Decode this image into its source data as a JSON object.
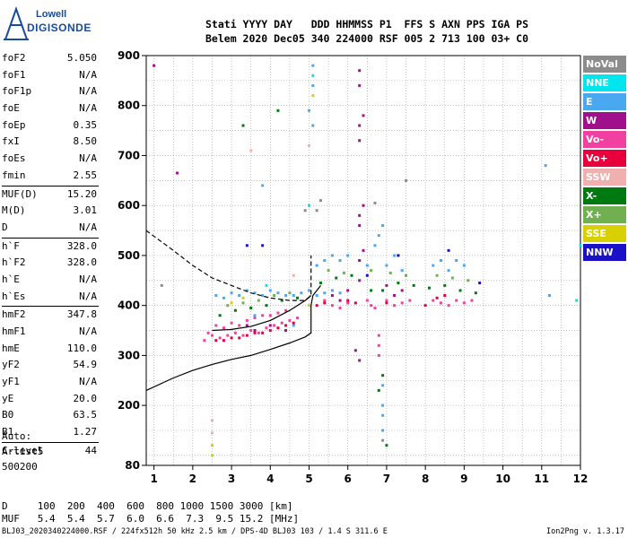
{
  "logo": {
    "line1": "Lowell",
    "line2": "DIGISONDE",
    "icon": "digisonde-logo-icon"
  },
  "header": {
    "line1": "Stati YYYY DAY   DDD HHMMSS P1  FFS S AXN PPS IGA PS",
    "line2": "Belem 2020 Dec05 340 224000 RSF 005 2 713 100 03+ C0"
  },
  "params": [
    [
      {
        "k": "foF2",
        "v": "5.050"
      },
      {
        "k": "foF1",
        "v": "N/A"
      },
      {
        "k": "foF1p",
        "v": "N/A"
      },
      {
        "k": "foE",
        "v": "N/A"
      },
      {
        "k": "foEp",
        "v": "0.35"
      },
      {
        "k": "fxI",
        "v": "8.50"
      },
      {
        "k": "foEs",
        "v": "N/A"
      },
      {
        "k": "fmin",
        "v": "2.55"
      }
    ],
    [
      {
        "k": "MUF(D)",
        "v": "15.20"
      },
      {
        "k": "M(D)",
        "v": "3.01"
      },
      {
        "k": "D",
        "v": "N/A"
      }
    ],
    [
      {
        "k": "h`F",
        "v": "328.0"
      },
      {
        "k": "h`F2",
        "v": "328.0"
      },
      {
        "k": "h`E",
        "v": "N/A"
      },
      {
        "k": "h`Es",
        "v": "N/A"
      }
    ],
    [
      {
        "k": "hmF2",
        "v": "347.8"
      },
      {
        "k": "hmF1",
        "v": "N/A"
      },
      {
        "k": "hmE",
        "v": "110.0"
      },
      {
        "k": "yF2",
        "v": "54.9"
      },
      {
        "k": "yF1",
        "v": "N/A"
      },
      {
        "k": "yE",
        "v": "20.0"
      },
      {
        "k": "B0",
        "v": "63.5"
      },
      {
        "k": "B1",
        "v": "1.27"
      }
    ],
    [
      {
        "k": "C-level",
        "v": "44"
      }
    ]
  ],
  "auto": {
    "line1": "Auto:",
    "line2": "Artist5",
    "line3": "500200"
  },
  "legend": [
    {
      "label": "NoVal",
      "color": "#8c8c8c"
    },
    {
      "label": "NNE",
      "color": "#00e5ee"
    },
    {
      "label": "E",
      "color": "#4aa8f0"
    },
    {
      "label": "W",
      "color": "#a0108a"
    },
    {
      "label": "Vo-",
      "color": "#f040a0"
    },
    {
      "label": "Vo+",
      "color": "#e8003c"
    },
    {
      "label": "SSW",
      "color": "#f0b0b0"
    },
    {
      "label": "X-",
      "color": "#007a10"
    },
    {
      "label": "X+",
      "color": "#70b050"
    },
    {
      "label": "SSE",
      "color": "#d8d000"
    },
    {
      "label": "NNW",
      "color": "#1a10c8"
    }
  ],
  "dmuf": {
    "line1": "D     100  200  400  600  800 1000 1500 3000 [km]",
    "line2": "MUF   5.4  5.4  5.7  6.0  6.6  7.3  9.5 15.2 [MHz]"
  },
  "footer": {
    "left": "BLJ03_2020340224000.RSF / 224fx512h 50 kHz 2.5 km / DPS-4D BLJ03 103 / 1.4 S 311.6 E",
    "right": "Ion2Png v. 1.3.17"
  },
  "chart_data": {
    "type": "scatter",
    "title": "",
    "xlabel": "",
    "ylabel": "",
    "xlim": [
      0.8,
      12
    ],
    "ylim": [
      80,
      900
    ],
    "x_ticks": [
      1,
      2,
      3,
      4,
      5,
      6,
      7,
      8,
      9,
      10,
      11,
      12
    ],
    "y_ticks": [
      80,
      200,
      300,
      400,
      500,
      600,
      700,
      800,
      900
    ],
    "grid": true,
    "legend_placement": "right",
    "series": [
      {
        "name": "E",
        "color": "#4aa8f0",
        "points": [
          [
            2.6,
            420
          ],
          [
            2.8,
            415
          ],
          [
            3.0,
            425
          ],
          [
            3.2,
            420
          ],
          [
            3.4,
            430
          ],
          [
            3.6,
            425
          ],
          [
            3.8,
            420
          ],
          [
            4.0,
            430
          ],
          [
            4.2,
            425
          ],
          [
            4.4,
            420
          ],
          [
            4.6,
            420
          ],
          [
            4.8,
            425
          ],
          [
            5.0,
            430
          ],
          [
            5.2,
            420
          ],
          [
            5.4,
            425
          ],
          [
            5.6,
            430
          ],
          [
            5.8,
            425
          ],
          [
            5.2,
            480
          ],
          [
            5.4,
            490
          ],
          [
            5.6,
            500
          ],
          [
            5.8,
            490
          ],
          [
            6.0,
            500
          ],
          [
            6.5,
            480
          ],
          [
            6.7,
            520
          ],
          [
            6.8,
            540
          ],
          [
            6.9,
            560
          ],
          [
            7.0,
            480
          ],
          [
            7.2,
            500
          ],
          [
            7.4,
            470
          ],
          [
            8.2,
            480
          ],
          [
            8.4,
            490
          ],
          [
            8.6,
            470
          ],
          [
            8.8,
            490
          ],
          [
            9.0,
            480
          ],
          [
            6.9,
            200
          ],
          [
            6.9,
            180
          ],
          [
            6.9,
            240
          ],
          [
            6.9,
            150
          ],
          [
            5.1,
            880
          ],
          [
            5.1,
            840
          ],
          [
            5.0,
            790
          ],
          [
            5.1,
            760
          ],
          [
            3.8,
            640
          ],
          [
            4.4,
            350
          ],
          [
            4.6,
            360
          ],
          [
            3.6,
            380
          ],
          [
            11.1,
            680
          ],
          [
            11.2,
            420
          ]
        ]
      },
      {
        "name": "W",
        "color": "#a0108a",
        "points": [
          [
            6.3,
            870
          ],
          [
            6.3,
            840
          ],
          [
            6.4,
            780
          ],
          [
            6.3,
            760
          ],
          [
            6.3,
            730
          ],
          [
            6.4,
            600
          ],
          [
            6.3,
            580
          ],
          [
            6.3,
            560
          ],
          [
            6.4,
            510
          ],
          [
            6.3,
            490
          ],
          [
            6.3,
            450
          ],
          [
            7.0,
            440
          ],
          [
            7.2,
            420
          ],
          [
            7.4,
            430
          ],
          [
            5.6,
            420
          ],
          [
            5.8,
            410
          ],
          [
            6.0,
            430
          ],
          [
            3.4,
            360
          ],
          [
            3.6,
            350
          ],
          [
            4.0,
            360
          ],
          [
            4.4,
            350
          ],
          [
            1.6,
            665
          ],
          [
            1.0,
            880
          ],
          [
            6.2,
            310
          ],
          [
            6.3,
            290
          ]
        ]
      },
      {
        "name": "Vo-",
        "color": "#f040a0",
        "points": [
          [
            2.5,
            340
          ],
          [
            2.7,
            335
          ],
          [
            2.9,
            340
          ],
          [
            3.1,
            345
          ],
          [
            3.3,
            340
          ],
          [
            3.5,
            350
          ],
          [
            3.7,
            345
          ],
          [
            3.9,
            355
          ],
          [
            4.1,
            360
          ],
          [
            4.3,
            365
          ],
          [
            4.5,
            370
          ],
          [
            4.7,
            375
          ],
          [
            2.6,
            360
          ],
          [
            2.8,
            355
          ],
          [
            3.0,
            365
          ],
          [
            3.2,
            360
          ],
          [
            3.4,
            370
          ],
          [
            3.6,
            375
          ],
          [
            3.8,
            380
          ],
          [
            4.0,
            380
          ],
          [
            4.2,
            385
          ],
          [
            4.4,
            390
          ],
          [
            2.3,
            330
          ],
          [
            2.4,
            345
          ],
          [
            5.4,
            410
          ],
          [
            5.6,
            400
          ],
          [
            5.8,
            395
          ],
          [
            6.0,
            405
          ],
          [
            6.5,
            410
          ],
          [
            6.6,
            400
          ],
          [
            6.7,
            395
          ],
          [
            7.0,
            410
          ],
          [
            7.2,
            400
          ],
          [
            7.4,
            405
          ],
          [
            7.6,
            410
          ],
          [
            8.2,
            410
          ],
          [
            8.4,
            405
          ],
          [
            8.6,
            400
          ],
          [
            8.8,
            410
          ],
          [
            9.0,
            405
          ],
          [
            9.2,
            410
          ],
          [
            6.8,
            340
          ],
          [
            6.8,
            320
          ],
          [
            6.8,
            300
          ]
        ]
      },
      {
        "name": "Vo+",
        "color": "#e8003c",
        "points": [
          [
            2.6,
            330
          ],
          [
            2.8,
            330
          ],
          [
            3.0,
            335
          ],
          [
            3.2,
            335
          ],
          [
            3.4,
            340
          ],
          [
            3.6,
            345
          ],
          [
            3.8,
            345
          ],
          [
            4.0,
            350
          ],
          [
            4.2,
            355
          ],
          [
            4.4,
            360
          ],
          [
            4.6,
            365
          ],
          [
            5.2,
            400
          ],
          [
            5.4,
            405
          ],
          [
            6.0,
            410
          ],
          [
            6.2,
            405
          ],
          [
            7.0,
            405
          ],
          [
            8.0,
            400
          ],
          [
            8.3,
            415
          ],
          [
            8.5,
            420
          ]
        ]
      },
      {
        "name": "X-",
        "color": "#007a10",
        "points": [
          [
            2.7,
            380
          ],
          [
            3.1,
            390
          ],
          [
            3.5,
            395
          ],
          [
            3.9,
            400
          ],
          [
            4.3,
            410
          ],
          [
            4.7,
            415
          ],
          [
            5.3,
            445
          ],
          [
            5.7,
            455
          ],
          [
            6.1,
            460
          ],
          [
            6.6,
            430
          ],
          [
            6.9,
            430
          ],
          [
            7.3,
            445
          ],
          [
            7.7,
            440
          ],
          [
            8.1,
            435
          ],
          [
            8.5,
            440
          ],
          [
            8.9,
            430
          ],
          [
            9.3,
            425
          ],
          [
            3.3,
            760
          ],
          [
            4.2,
            790
          ],
          [
            6.9,
            260
          ],
          [
            6.8,
            230
          ],
          [
            7.0,
            120
          ]
        ]
      },
      {
        "name": "X+",
        "color": "#70b050",
        "points": [
          [
            2.9,
            400
          ],
          [
            3.3,
            405
          ],
          [
            3.7,
            410
          ],
          [
            4.1,
            420
          ],
          [
            4.5,
            425
          ],
          [
            5.5,
            470
          ],
          [
            5.9,
            465
          ],
          [
            6.6,
            470
          ],
          [
            7.1,
            465
          ],
          [
            7.5,
            460
          ],
          [
            8.3,
            460
          ],
          [
            8.7,
            455
          ],
          [
            9.1,
            450
          ]
        ]
      },
      {
        "name": "SSW",
        "color": "#f0b0b0",
        "points": [
          [
            3.5,
            710
          ],
          [
            5.0,
            720
          ],
          [
            4.6,
            460
          ],
          [
            2.5,
            170
          ],
          [
            2.5,
            145
          ]
        ]
      },
      {
        "name": "SSE",
        "color": "#d8d000",
        "points": [
          [
            2.5,
            120
          ],
          [
            2.5,
            100
          ],
          [
            3.0,
            405
          ],
          [
            3.3,
            415
          ],
          [
            5.1,
            820
          ],
          [
            5.0,
            400
          ]
        ]
      },
      {
        "name": "NNE",
        "color": "#00e5ee",
        "points": [
          [
            5.1,
            860
          ],
          [
            5.0,
            600
          ],
          [
            3.9,
            440
          ],
          [
            11.9,
            410
          ],
          [
            12.0,
            520
          ]
        ]
      },
      {
        "name": "NNW",
        "color": "#1a10c8",
        "points": [
          [
            3.4,
            520
          ],
          [
            3.8,
            520
          ],
          [
            6.5,
            460
          ],
          [
            7.3,
            500
          ],
          [
            8.6,
            510
          ],
          [
            9.4,
            445
          ]
        ]
      },
      {
        "name": "NoVal",
        "color": "#8c8c8c",
        "points": [
          [
            5.2,
            590
          ],
          [
            5.3,
            610
          ],
          [
            6.7,
            605
          ],
          [
            7.5,
            650
          ],
          [
            4.9,
            590
          ],
          [
            1.2,
            440
          ],
          [
            6.9,
            130
          ]
        ]
      }
    ],
    "curves": [
      {
        "style": "dashed",
        "points": [
          [
            0.8,
            550
          ],
          [
            1.5,
            510
          ],
          [
            2.0,
            480
          ],
          [
            2.5,
            455
          ],
          [
            3.0,
            440
          ],
          [
            3.5,
            425
          ],
          [
            4.0,
            415
          ],
          [
            4.5,
            410
          ],
          [
            4.9,
            410
          ],
          [
            5.05,
            420
          ],
          [
            5.05,
            500
          ]
        ]
      },
      {
        "style": "solid",
        "points": [
          [
            0.8,
            230
          ],
          [
            1.5,
            255
          ],
          [
            2.0,
            270
          ],
          [
            2.5,
            282
          ],
          [
            3.0,
            292
          ],
          [
            3.5,
            300
          ],
          [
            4.0,
            312
          ],
          [
            4.5,
            325
          ],
          [
            4.9,
            337
          ],
          [
            5.05,
            345
          ],
          [
            5.05,
            400
          ],
          [
            5.1,
            420
          ],
          [
            5.3,
            440
          ]
        ]
      },
      {
        "style": "solid",
        "points": [
          [
            2.5,
            350
          ],
          [
            3.0,
            352
          ],
          [
            3.5,
            358
          ],
          [
            4.0,
            370
          ],
          [
            4.5,
            390
          ],
          [
            4.9,
            410
          ],
          [
            5.05,
            420
          ]
        ]
      }
    ]
  }
}
